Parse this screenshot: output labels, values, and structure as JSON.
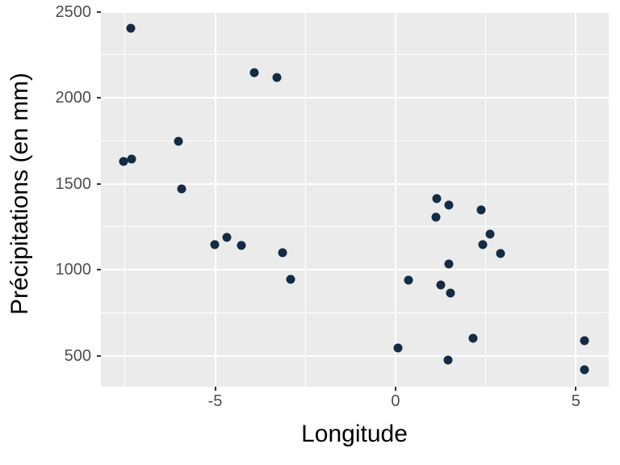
{
  "figure": {
    "background": "#FFFFFF",
    "panel_background": "#EBEBEB",
    "gridline_color": "#FFFFFF",
    "point_color": "#132B43",
    "tick_mark_color": "#333333",
    "tick_label_color": "#4D4D4D",
    "axis_title_color": "#000000"
  },
  "chart_data": {
    "type": "scatter",
    "title": "",
    "xlabel": "Longitude",
    "ylabel": "Précipitations (en mm)",
    "xlim": [
      -8.18,
      5.9
    ],
    "ylim": [
      322,
      2501
    ],
    "x_major_ticks": [
      -5,
      0,
      5
    ],
    "x_major_tick_labels": [
      "-5",
      "0",
      "5"
    ],
    "x_minor_gridlines": [
      -7.5,
      -2.5,
      2.5
    ],
    "y_major_ticks": [
      500,
      1000,
      1500,
      2000,
      2500
    ],
    "y_major_tick_labels": [
      "500",
      "1000",
      "1500",
      "2000",
      "2500"
    ],
    "y_minor_gridlines": [
      750,
      1250,
      1750,
      2250
    ],
    "grid": true,
    "legend": "none",
    "points": [
      [
        -7.55,
        1628
      ],
      [
        -7.31,
        1642
      ],
      [
        -7.34,
        2405
      ],
      [
        -6.03,
        1748
      ],
      [
        -5.93,
        1470
      ],
      [
        -5.01,
        1148
      ],
      [
        -4.68,
        1188
      ],
      [
        -4.27,
        1142
      ],
      [
        -3.91,
        2146
      ],
      [
        -3.28,
        2119
      ],
      [
        -3.14,
        1101
      ],
      [
        -2.91,
        946
      ],
      [
        0.07,
        547
      ],
      [
        0.35,
        941
      ],
      [
        1.13,
        1306
      ],
      [
        1.15,
        1414
      ],
      [
        1.25,
        910
      ],
      [
        1.46,
        476
      ],
      [
        1.49,
        1376
      ],
      [
        1.49,
        1034
      ],
      [
        1.53,
        866
      ],
      [
        2.15,
        601
      ],
      [
        2.37,
        1349
      ],
      [
        2.42,
        1146
      ],
      [
        2.61,
        1205
      ],
      [
        2.92,
        1096
      ],
      [
        5.24,
        586
      ],
      [
        5.24,
        419
      ]
    ]
  }
}
